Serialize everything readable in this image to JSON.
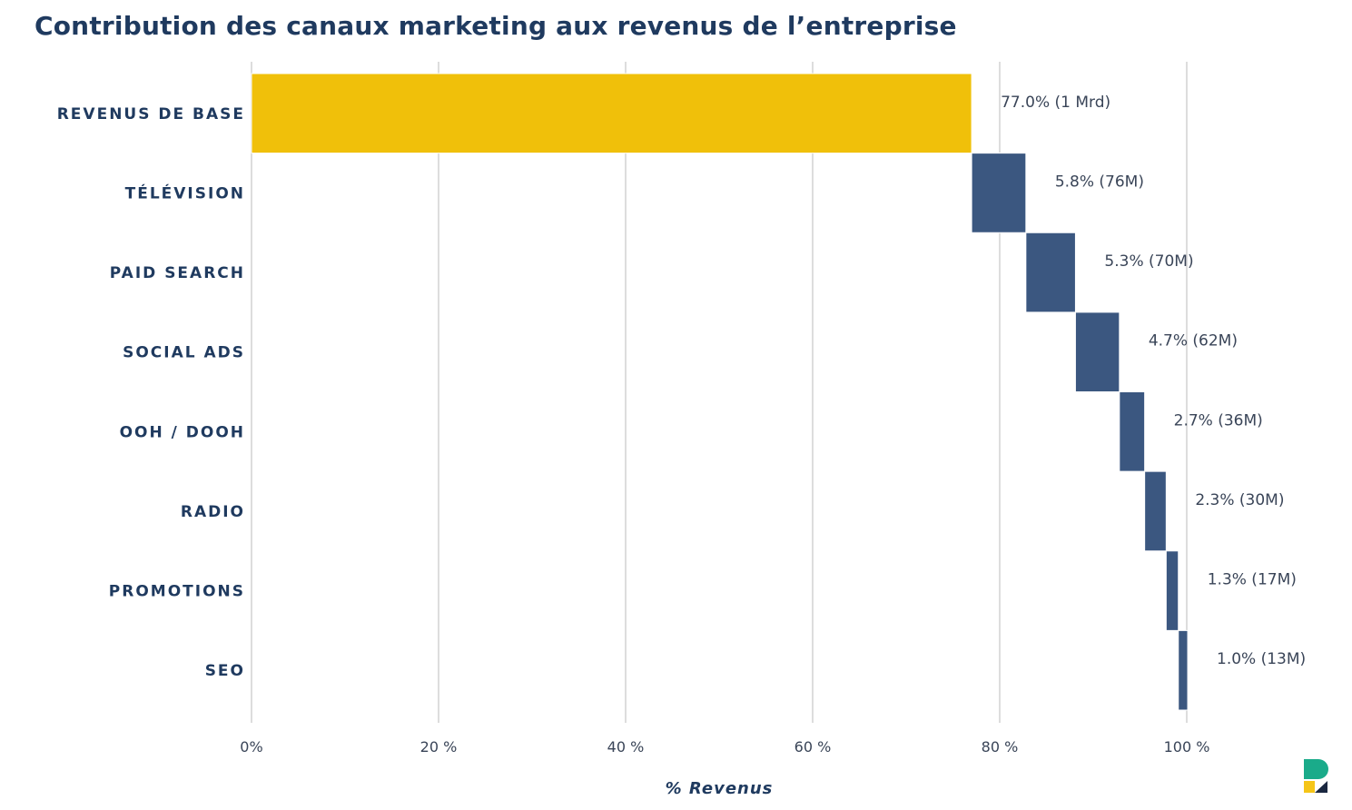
{
  "chart_data": {
    "type": "bar",
    "subtype": "waterfall-horizontal",
    "title": "Contribution des canaux marketing aux revenus de l’entreprise",
    "xlabel": "% Revenus",
    "ylabel": "",
    "xlim": [
      0,
      100
    ],
    "grid": true,
    "x_ticks": [
      "0%",
      "20 %",
      "40 %",
      "60 %",
      "80 %",
      "100 %"
    ],
    "categories": [
      "REVENUS DE BASE",
      "TÉLÉVISION",
      "PAID SEARCH",
      "SOCIAL ADS",
      "OOH / DOOH",
      "RADIO",
      "PROMOTIONS",
      "SEO"
    ],
    "values": [
      77.0,
      5.8,
      5.3,
      4.7,
      2.7,
      2.3,
      1.3,
      1.0
    ],
    "data_labels": [
      "77.0% (1 Mrd)",
      "5.8% (76M)",
      "5.3% (70M)",
      "4.7% (62M)",
      "2.7% (36M)",
      "2.3% (30M)",
      "1.3% (17M)",
      "1.0% (13M)"
    ],
    "colors": {
      "base": "#f0c00a",
      "channel": "#3b5780",
      "grid": "#dddddd",
      "text": "#1f3a5f"
    }
  },
  "logo": {
    "colors": [
      "#1aab8a",
      "#f5c518",
      "#1a2740"
    ]
  }
}
